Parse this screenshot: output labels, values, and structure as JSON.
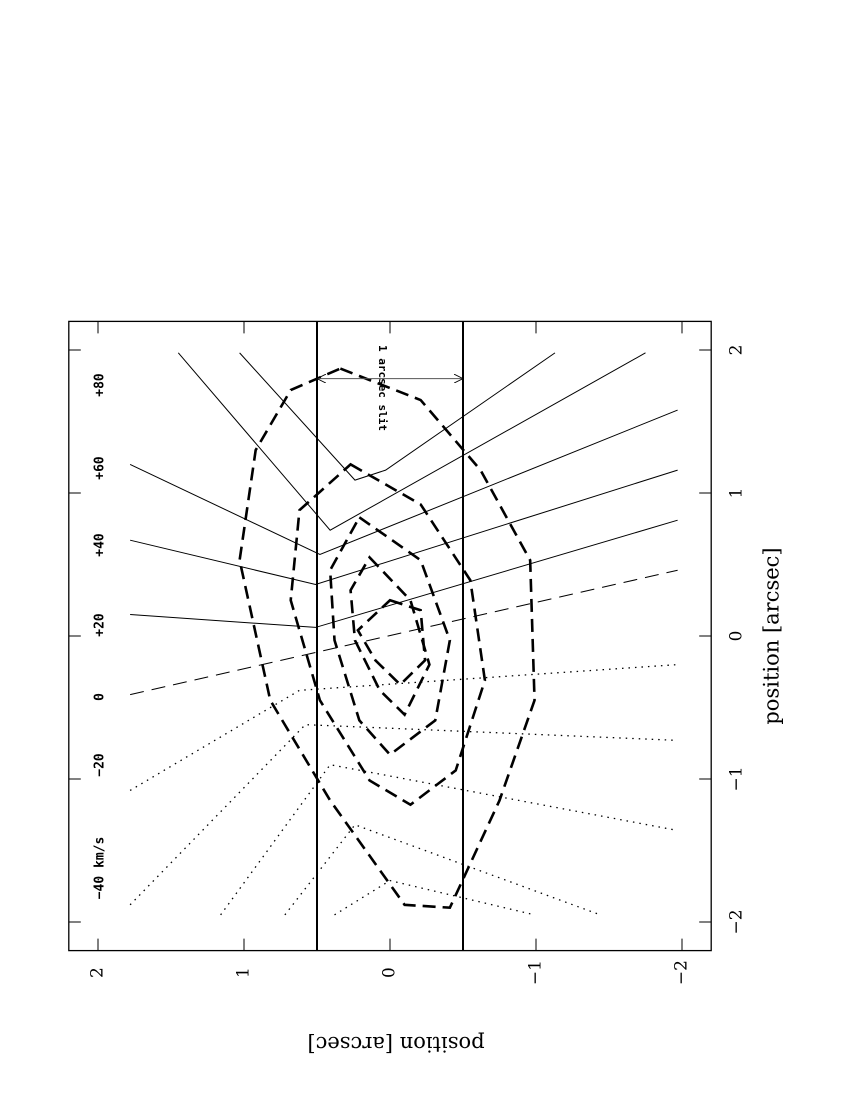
{
  "chart_data": {
    "type": "contour",
    "xlabel": "position [arcsec]",
    "ylabel": "position [arcsec]",
    "xlim": [
      -2.2,
      2.2
    ],
    "ylim": [
      -2.2,
      2.2
    ],
    "xticks": [
      {
        "value": -2,
        "label": "−2"
      },
      {
        "value": -1,
        "label": "−1"
      },
      0,
      1,
      2
    ],
    "yticks": [
      {
        "value": -2,
        "label": "−2"
      },
      {
        "value": -1,
        "label": "−1"
      },
      0,
      1,
      2
    ],
    "velocity_contours": [
      {
        "label": "−40 km/s",
        "style": "dotted",
        "x": [
          -1.88,
          -0.62,
          -0.73
        ],
        "y": [
          1.78,
          0.58,
          -1.97
        ]
      },
      {
        "label": "−20",
        "style": "dotted",
        "x": [
          -1.08,
          -0.38,
          -0.2
        ],
        "y": [
          1.78,
          0.62,
          -1.97
        ]
      },
      {
        "label": "0",
        "style": "dashed",
        "x": [
          -0.41,
          0.46
        ],
        "y": [
          1.78,
          -1.97
        ]
      },
      {
        "label": "+20",
        "style": "solid",
        "x": [
          0.15,
          0.06,
          0.81
        ],
        "y": [
          1.78,
          0.51,
          -1.97
        ]
      },
      {
        "label": "+40",
        "style": "solid",
        "x": [
          0.67,
          0.36,
          1.16
        ],
        "y": [
          1.78,
          0.51,
          -1.97
        ]
      },
      {
        "label": "+60",
        "style": "solid",
        "x": [
          1.2,
          0.57,
          1.58
        ],
        "y": [
          1.78,
          0.48,
          -1.97
        ]
      },
      {
        "label": "+80",
        "style": "solid",
        "x": [
          1.98,
          0.74,
          1.98
        ],
        "y": [
          1.45,
          0.41,
          -1.75
        ]
      },
      {
        "style": "solid",
        "x": [
          1.98,
          1.09,
          1.16,
          1.98
        ],
        "y": [
          1.03,
          0.24,
          0.03,
          -1.13
        ]
      },
      {
        "style": "dotted",
        "x": [
          -1.95,
          -0.9,
          -1.36
        ],
        "y": [
          1.16,
          0.41,
          -1.97
        ]
      },
      {
        "style": "dotted",
        "x": [
          -1.95,
          -1.32,
          -1.95
        ],
        "y": [
          0.72,
          0.24,
          -1.44
        ]
      },
      {
        "style": "dotted",
        "x": [
          -1.95,
          -1.71,
          -1.95
        ],
        "y": [
          0.38,
          0,
          -0.99
        ]
      }
    ],
    "intensity_contours": [
      {
        "closed": true,
        "x": [
          1.87,
          1.65,
          1.16,
          0.53,
          -0.45,
          -1.15,
          -1.9,
          -1.88,
          -1.15,
          -0.45,
          0.53,
          1.3,
          1.72
        ],
        "y": [
          0.34,
          -0.21,
          -0.62,
          -0.96,
          -0.99,
          -0.75,
          -0.41,
          -0.1,
          0.41,
          0.82,
          1.03,
          0.92,
          0.68
        ]
      },
      {
        "closed": true,
        "x": [
          1.2,
          0.92,
          0.39,
          -0.31,
          -0.94,
          -1.18,
          -1.01,
          -0.45,
          0.25,
          0.88
        ],
        "y": [
          0.27,
          -0.21,
          -0.55,
          -0.65,
          -0.45,
          -0.14,
          0.14,
          0.48,
          0.68,
          0.62
        ]
      },
      {
        "closed": true,
        "x": [
          0.83,
          0.53,
          -0.03,
          -0.59,
          -0.83,
          -0.59,
          -0.03,
          0.46
        ],
        "y": [
          0.21,
          -0.21,
          -0.41,
          -0.31,
          0,
          0.21,
          0.38,
          0.41
        ]
      },
      {
        "closed": true,
        "x": [
          0.55,
          0.25,
          -0.2,
          -0.55,
          -0.38,
          -0.03,
          0.32
        ],
        "y": [
          0.14,
          -0.14,
          -0.27,
          -0.1,
          0.07,
          0.24,
          0.27
        ]
      },
      {
        "closed": true,
        "x": [
          0.25,
          0.18,
          -0.17,
          -0.34,
          -0.17,
          0.04
        ],
        "y": [
          0,
          -0.21,
          -0.24,
          -0.07,
          0.1,
          0.22
        ]
      }
    ],
    "slit": {
      "y": [
        0.5,
        -0.5
      ],
      "label": "1 arcsec slit",
      "arrow_x": 1.8
    }
  }
}
